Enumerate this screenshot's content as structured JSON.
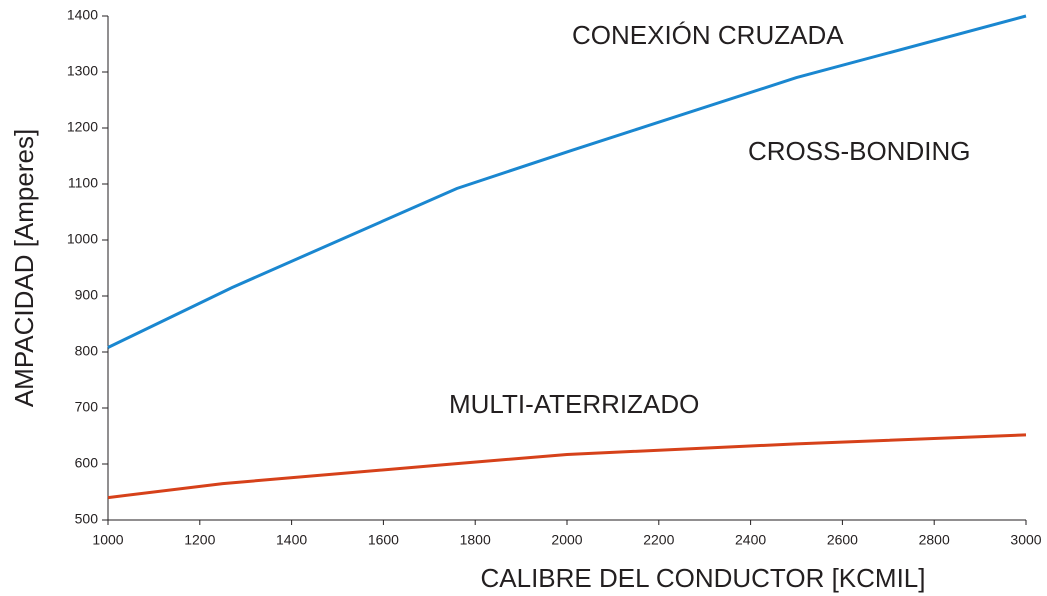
{
  "chart_data": {
    "type": "line",
    "xlabel": "CALIBRE DEL CONDUCTOR [KCMIL]",
    "ylabel": "AMPACIDAD [Amperes]",
    "annotations": [
      "CONEXIÓN CRUZADA",
      "CROSS-BONDING",
      "MULTI-ATERRIZADO"
    ],
    "series": [
      {
        "color": "#1a87d0",
        "x": [
          1000,
          1270,
          1760,
          2010,
          2500,
          3000
        ],
        "values": [
          808,
          915,
          1092,
          1160,
          1290,
          1400
        ]
      },
      {
        "color": "#d6411a",
        "x": [
          1000,
          1250,
          1750,
          2000,
          2500,
          3000
        ],
        "values": [
          540,
          565,
          600,
          617,
          636,
          652
        ]
      }
    ],
    "xlim": [
      1000,
      3000
    ],
    "xticks": [
      1000,
      1200,
      1400,
      1600,
      1800,
      2000,
      2200,
      2400,
      2600,
      2800,
      3000
    ],
    "ylim": [
      500,
      1400
    ],
    "yticks": [
      500,
      600,
      700,
      800,
      900,
      1000,
      1100,
      1200,
      1300,
      1400
    ],
    "grid": false
  }
}
